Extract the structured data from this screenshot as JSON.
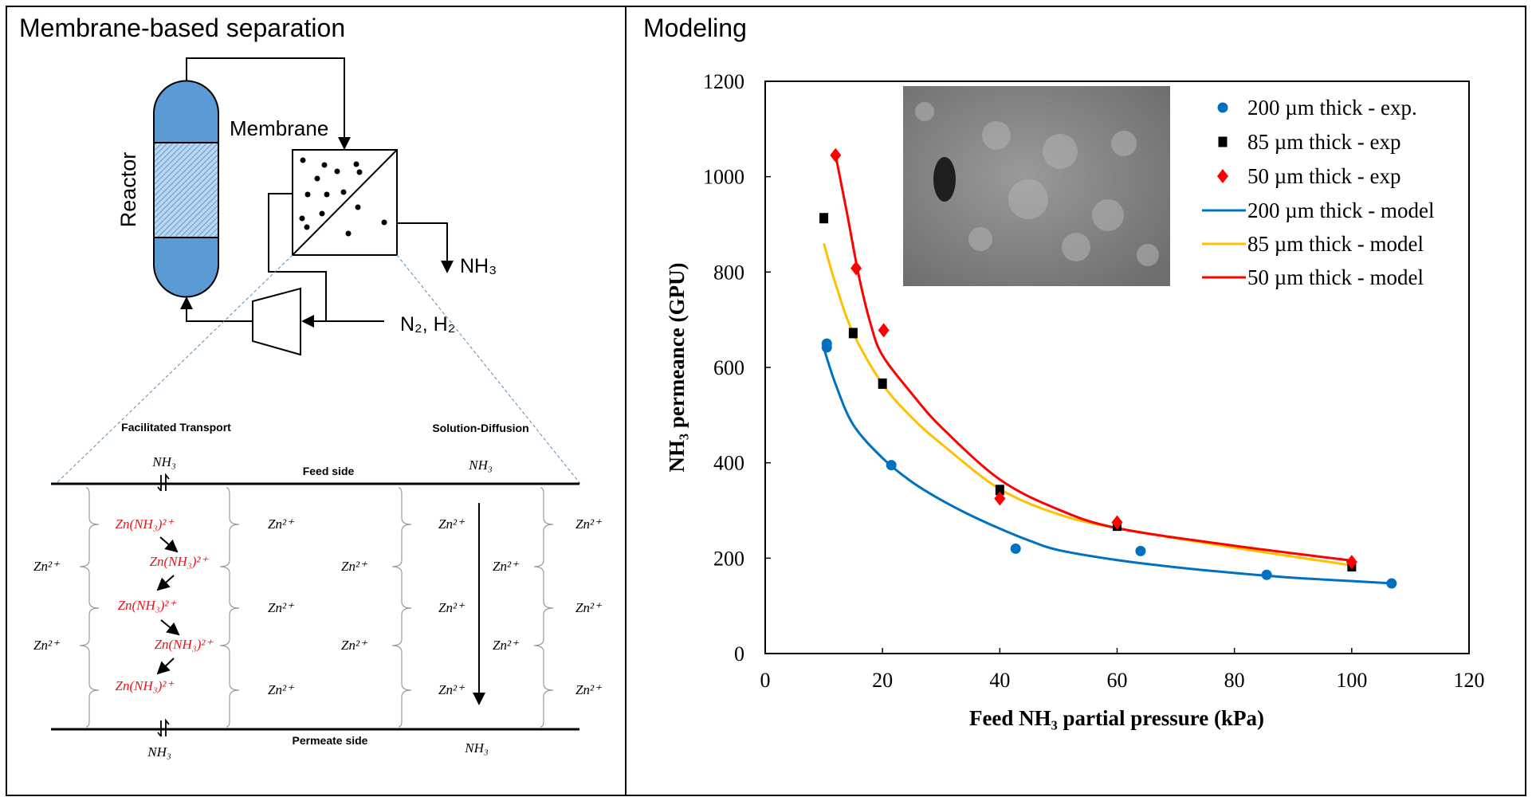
{
  "panels": {
    "left_title": "Membrane-based separation",
    "right_title": "Modeling"
  },
  "process": {
    "reactor_label": "Reactor",
    "membrane_label": "Membrane",
    "product_label": "NH₃",
    "feed_label": "N₂, H₂"
  },
  "mechanism": {
    "facilitated_title": "Facilitated Transport",
    "solution_title": "Solution-Diffusion",
    "feed_side": "Feed side",
    "permeate_side": "Permeate side",
    "nh3": "NH₃",
    "zn": "Zn²⁺",
    "complex": "Zn(NH₃)²⁺"
  },
  "chart_data": {
    "type": "scatter",
    "xlabel": "Feed NH₃ partial pressure (kPa)",
    "ylabel": "NH₃ permeance (GPU)",
    "xlim": [
      0,
      120
    ],
    "ylim": [
      0,
      1200
    ],
    "xticks": [
      0,
      20,
      40,
      60,
      80,
      100,
      120
    ],
    "yticks": [
      0,
      200,
      400,
      600,
      800,
      1000,
      1200
    ],
    "legend_position": "top-right",
    "colors": {
      "blue": "#0070c0",
      "yellow": "#ffc000",
      "red": "#ff0000",
      "black": "#000000"
    },
    "series": [
      {
        "name": "200 µm thick - exp.",
        "kind": "points",
        "marker": "circle",
        "color": "#0070c0",
        "points": [
          [
            10.5,
            650
          ],
          [
            10.5,
            642
          ],
          [
            21.5,
            395
          ],
          [
            42.7,
            220
          ],
          [
            64,
            215
          ],
          [
            85.5,
            165
          ],
          [
            106.8,
            147
          ]
        ]
      },
      {
        "name": "85 µm thick - exp",
        "kind": "points",
        "marker": "square",
        "color": "#000000",
        "points": [
          [
            10,
            913
          ],
          [
            15,
            672
          ],
          [
            20,
            566
          ],
          [
            40,
            343
          ],
          [
            60,
            268
          ],
          [
            100,
            183
          ]
        ]
      },
      {
        "name": "50 µm thick - exp",
        "kind": "points",
        "marker": "diamond",
        "color": "#ff0000",
        "points": [
          [
            12,
            1045
          ],
          [
            15.5,
            808
          ],
          [
            20.2,
            678
          ],
          [
            40,
            325
          ],
          [
            60,
            275
          ],
          [
            100,
            192
          ]
        ]
      },
      {
        "name": "200 µm thick - model",
        "kind": "line",
        "color": "#0070c0",
        "points": [
          [
            10,
            640
          ],
          [
            12,
            565
          ],
          [
            15,
            480
          ],
          [
            20,
            410
          ],
          [
            25,
            360
          ],
          [
            30,
            322
          ],
          [
            35,
            290
          ],
          [
            40,
            262
          ],
          [
            45,
            237
          ],
          [
            50,
            217
          ],
          [
            60,
            196
          ],
          [
            70,
            181
          ],
          [
            80,
            169
          ],
          [
            90,
            159
          ],
          [
            100,
            152
          ],
          [
            107,
            147
          ]
        ]
      },
      {
        "name": "85 µm thick - model",
        "kind": "line",
        "color": "#ffc000",
        "points": [
          [
            10,
            860
          ],
          [
            12,
            775
          ],
          [
            15,
            672
          ],
          [
            20,
            565
          ],
          [
            25,
            495
          ],
          [
            30,
            440
          ],
          [
            40,
            345
          ],
          [
            50,
            292
          ],
          [
            60,
            263
          ],
          [
            80,
            222
          ],
          [
            100,
            185
          ]
        ]
      },
      {
        "name": "50 µm thick - model",
        "kind": "line",
        "color": "#ff0000",
        "points": [
          [
            12,
            1045
          ],
          [
            14,
            920
          ],
          [
            16,
            790
          ],
          [
            18,
            690
          ],
          [
            20,
            625
          ],
          [
            25,
            545
          ],
          [
            30,
            475
          ],
          [
            40,
            365
          ],
          [
            50,
            302
          ],
          [
            60,
            263
          ],
          [
            80,
            226
          ],
          [
            100,
            195
          ]
        ]
      }
    ]
  }
}
